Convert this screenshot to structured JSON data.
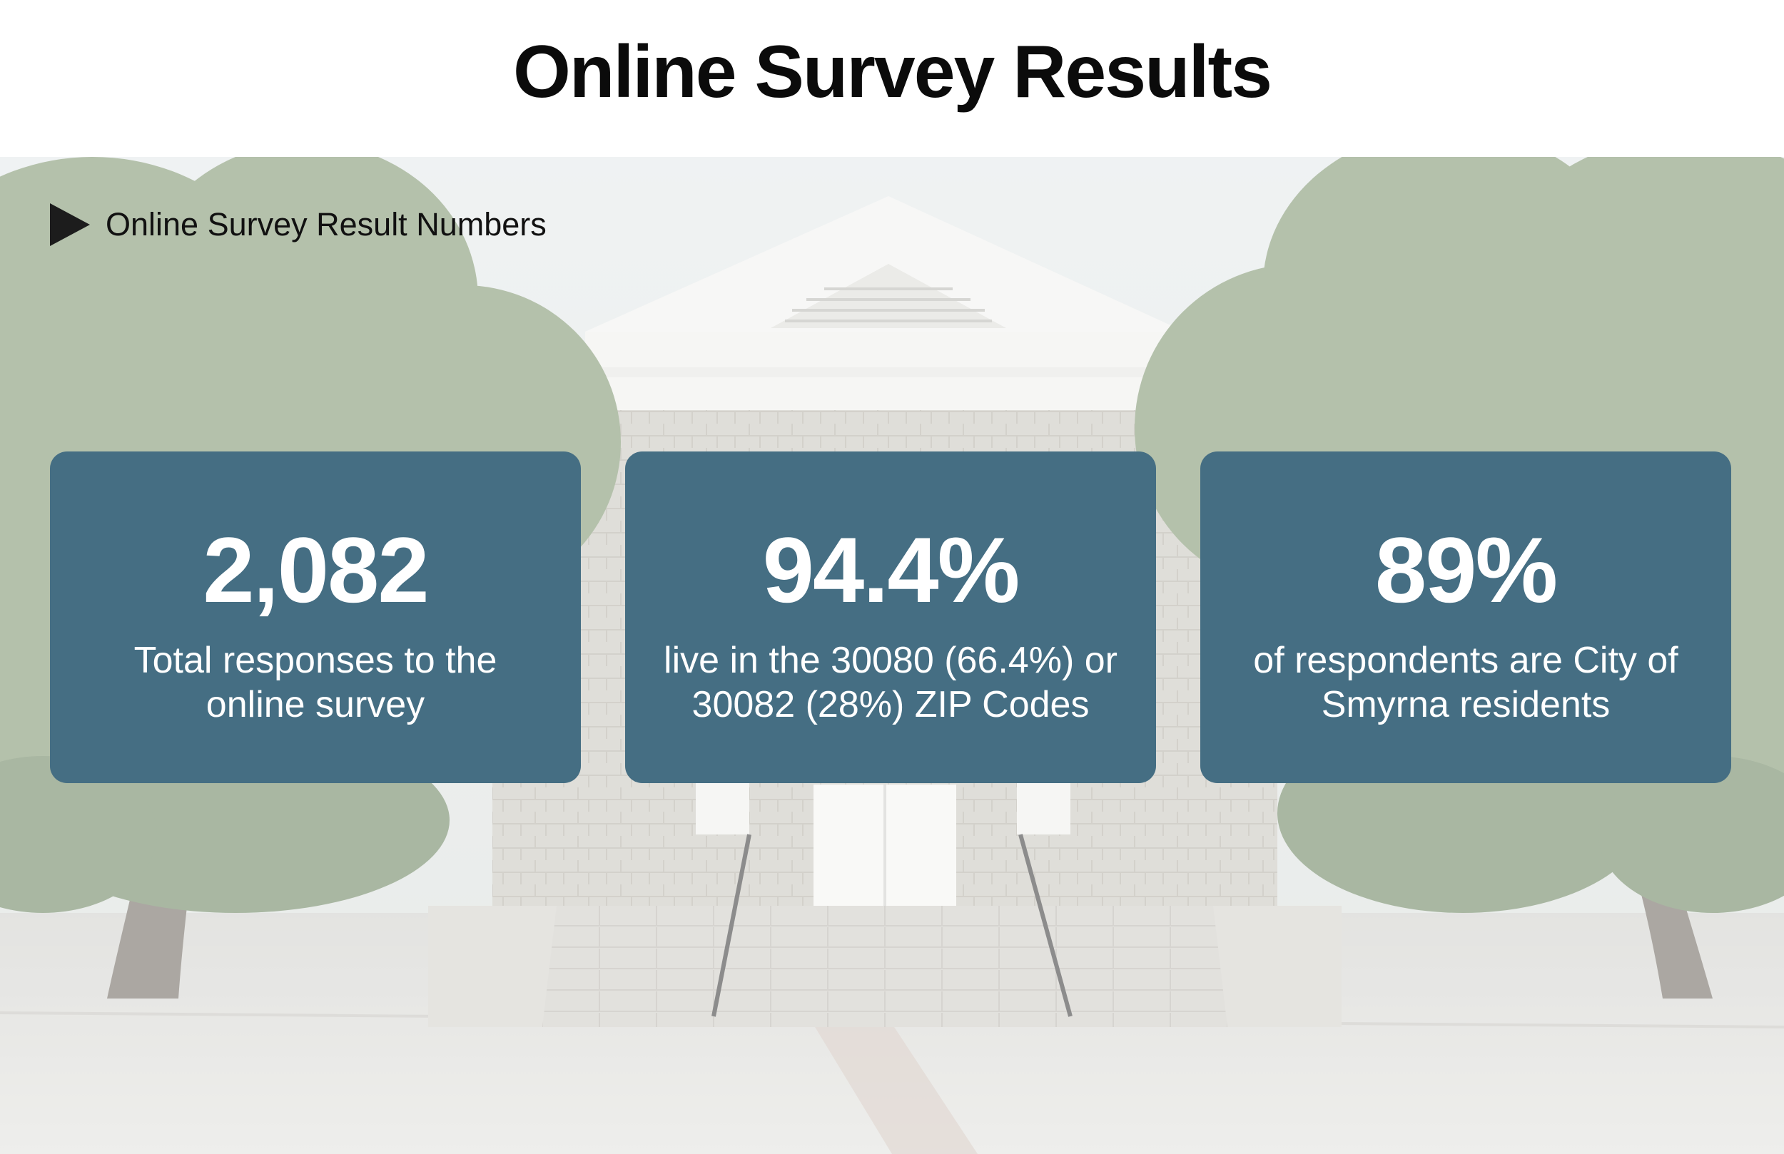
{
  "page": {
    "title": "Online Survey Results"
  },
  "section": {
    "label": "Online Survey Result Numbers",
    "icon": "play-triangle-icon"
  },
  "stats": [
    {
      "value": "2,082",
      "description_line1": "Total responses to the",
      "description_line2": "online survey"
    },
    {
      "value": "94.4%",
      "description_line1": "live in the 30080 (66.4%) or",
      "description_line2": "30082 (28%) ZIP Codes"
    },
    {
      "value": "89%",
      "description_line1": "of respondents are City of",
      "description_line2": "Smyrna residents"
    }
  ],
  "colors": {
    "card_background": "#456e83",
    "card_text": "#ffffff",
    "title_text": "#0b0b0b"
  }
}
